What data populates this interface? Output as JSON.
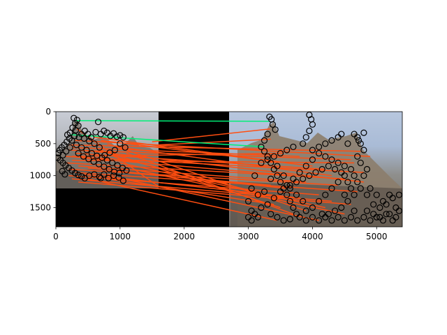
{
  "chart_data": {
    "type": "image",
    "title": "",
    "xlabel": "",
    "ylabel": "",
    "xlim": [
      0,
      5400
    ],
    "ylim": [
      1800,
      0
    ],
    "xticks": [
      0,
      1000,
      2000,
      3000,
      4000,
      5000
    ],
    "yticks": [
      0,
      500,
      1000,
      1500
    ],
    "xtick_labels": [
      "0",
      "1000",
      "2000",
      "3000",
      "4000",
      "5000"
    ],
    "ytick_labels": [
      "0",
      "500",
      "1000",
      "1500"
    ],
    "images": [
      {
        "name": "left-photo",
        "x": [
          0,
          1600
        ],
        "y": [
          0,
          1200
        ]
      },
      {
        "name": "right-photo",
        "x": [
          2700,
          5400
        ],
        "y": [
          0,
          1800
        ]
      }
    ],
    "colors": {
      "inlier": "#00ee77",
      "outlier": "#ff4e11",
      "keypoint": "#000000",
      "padding": "#000000"
    },
    "inlier_matches": [
      {
        "x1": 280,
        "y1": 140,
        "x2": 3330,
        "y2": 150
      },
      {
        "x1": 230,
        "y1": 360,
        "x2": 3250,
        "y2": 550
      }
    ],
    "outlier_matches": [
      {
        "x1": 330,
        "y1": 270,
        "x2": 1600,
        "y2": 1170
      },
      {
        "x1": 1500,
        "y1": 470,
        "x2": 3340,
        "y2": 270
      },
      {
        "x1": 1600,
        "y1": 520,
        "x2": 3350,
        "y2": 430
      },
      {
        "x1": 200,
        "y1": 520,
        "x2": 4750,
        "y2": 620
      },
      {
        "x1": 250,
        "y1": 560,
        "x2": 3800,
        "y2": 700
      },
      {
        "x1": 200,
        "y1": 600,
        "x2": 4600,
        "y2": 750
      },
      {
        "x1": 300,
        "y1": 650,
        "x2": 4200,
        "y2": 900
      },
      {
        "x1": 150,
        "y1": 700,
        "x2": 4800,
        "y2": 950
      },
      {
        "x1": 250,
        "y1": 760,
        "x2": 4650,
        "y2": 800
      },
      {
        "x1": 400,
        "y1": 720,
        "x2": 3700,
        "y2": 1000
      },
      {
        "x1": 150,
        "y1": 800,
        "x2": 4500,
        "y2": 1050
      },
      {
        "x1": 350,
        "y1": 850,
        "x2": 3900,
        "y2": 1100
      },
      {
        "x1": 200,
        "y1": 900,
        "x2": 4400,
        "y2": 1150
      },
      {
        "x1": 500,
        "y1": 880,
        "x2": 3600,
        "y2": 1200
      },
      {
        "x1": 300,
        "y1": 950,
        "x2": 4700,
        "y2": 1250
      },
      {
        "x1": 200,
        "y1": 1000,
        "x2": 4100,
        "y2": 1300
      },
      {
        "x1": 450,
        "y1": 980,
        "x2": 3800,
        "y2": 1350
      },
      {
        "x1": 250,
        "y1": 1050,
        "x2": 4300,
        "y2": 1400
      },
      {
        "x1": 600,
        "y1": 1020,
        "x2": 3400,
        "y2": 1450
      },
      {
        "x1": 350,
        "y1": 1100,
        "x2": 4600,
        "y2": 1450
      },
      {
        "x1": 700,
        "y1": 600,
        "x2": 3500,
        "y2": 1500
      },
      {
        "x1": 800,
        "y1": 500,
        "x2": 3900,
        "y2": 1550
      },
      {
        "x1": 900,
        "y1": 700,
        "x2": 3300,
        "y2": 1300
      },
      {
        "x1": 1000,
        "y1": 800,
        "x2": 4200,
        "y2": 1500
      },
      {
        "x1": 600,
        "y1": 400,
        "x2": 3600,
        "y2": 800
      },
      {
        "x1": 700,
        "y1": 450,
        "x2": 4000,
        "y2": 850
      },
      {
        "x1": 1100,
        "y1": 650,
        "x2": 3700,
        "y2": 1600
      },
      {
        "x1": 1200,
        "y1": 900,
        "x2": 4500,
        "y2": 1600
      },
      {
        "x1": 500,
        "y1": 1050,
        "x2": 3450,
        "y2": 1700
      },
      {
        "x1": 800,
        "y1": 1000,
        "x2": 4100,
        "y2": 1700
      },
      {
        "x1": 300,
        "y1": 450,
        "x2": 4900,
        "y2": 700
      },
      {
        "x1": 400,
        "y1": 600,
        "x2": 4800,
        "y2": 1100
      },
      {
        "x1": 250,
        "y1": 700,
        "x2": 3550,
        "y2": 650
      },
      {
        "x1": 950,
        "y1": 550,
        "x2": 4300,
        "y2": 1000
      },
      {
        "x1": 1050,
        "y1": 950,
        "x2": 3350,
        "y2": 1150
      }
    ],
    "keypoints_left": [
      [
        280,
        100
      ],
      [
        330,
        130
      ],
      [
        300,
        180
      ],
      [
        350,
        220
      ],
      [
        260,
        250
      ],
      [
        310,
        290
      ],
      [
        220,
        330
      ],
      [
        180,
        360
      ],
      [
        400,
        350
      ],
      [
        450,
        300
      ],
      [
        500,
        350
      ],
      [
        550,
        400
      ],
      [
        620,
        320
      ],
      [
        700,
        350
      ],
      [
        750,
        300
      ],
      [
        800,
        330
      ],
      [
        850,
        380
      ],
      [
        900,
        340
      ],
      [
        950,
        390
      ],
      [
        1000,
        370
      ],
      [
        1050,
        400
      ],
      [
        660,
        160
      ],
      [
        210,
        420
      ],
      [
        170,
        470
      ],
      [
        130,
        520
      ],
      [
        90,
        560
      ],
      [
        60,
        600
      ],
      [
        40,
        650
      ],
      [
        30,
        720
      ],
      [
        70,
        760
      ],
      [
        110,
        800
      ],
      [
        150,
        840
      ],
      [
        200,
        880
      ],
      [
        250,
        920
      ],
      [
        300,
        960
      ],
      [
        350,
        990
      ],
      [
        400,
        1010
      ],
      [
        450,
        1040
      ],
      [
        520,
        1000
      ],
      [
        600,
        980
      ],
      [
        680,
        1020
      ],
      [
        750,
        980
      ],
      [
        820,
        1040
      ],
      [
        900,
        1000
      ],
      [
        980,
        1030
      ],
      [
        1050,
        1080
      ],
      [
        700,
        1040
      ],
      [
        100,
        930
      ],
      [
        140,
        980
      ],
      [
        250,
        450
      ],
      [
        320,
        520
      ],
      [
        400,
        560
      ],
      [
        480,
        600
      ],
      [
        560,
        650
      ],
      [
        640,
        690
      ],
      [
        720,
        720
      ],
      [
        800,
        760
      ],
      [
        880,
        800
      ],
      [
        960,
        840
      ],
      [
        1040,
        880
      ],
      [
        1100,
        920
      ],
      [
        1000,
        500
      ],
      [
        1080,
        560
      ],
      [
        920,
        600
      ],
      [
        840,
        640
      ],
      [
        760,
        680
      ],
      [
        680,
        560
      ],
      [
        600,
        500
      ],
      [
        520,
        460
      ],
      [
        440,
        420
      ],
      [
        360,
        400
      ],
      [
        290,
        380
      ],
      [
        220,
        560
      ],
      [
        160,
        620
      ],
      [
        110,
        680
      ],
      [
        350,
        650
      ],
      [
        430,
        700
      ],
      [
        510,
        740
      ],
      [
        590,
        780
      ],
      [
        670,
        820
      ],
      [
        750,
        860
      ],
      [
        830,
        900
      ],
      [
        910,
        940
      ],
      [
        990,
        960
      ]
    ],
    "keypoints_right": [
      [
        3330,
        80
      ],
      [
        3360,
        120
      ],
      [
        3380,
        200
      ],
      [
        3420,
        280
      ],
      [
        3300,
        350
      ],
      [
        3250,
        450
      ],
      [
        3200,
        550
      ],
      [
        3250,
        620
      ],
      [
        3300,
        700
      ],
      [
        3350,
        800
      ],
      [
        3400,
        900
      ],
      [
        3450,
        1000
      ],
      [
        3500,
        1100
      ],
      [
        3550,
        1200
      ],
      [
        3600,
        1300
      ],
      [
        3650,
        1400
      ],
      [
        3700,
        1500
      ],
      [
        3750,
        1600
      ],
      [
        3800,
        1650
      ],
      [
        3900,
        1700
      ],
      [
        4000,
        1650
      ],
      [
        4100,
        1700
      ],
      [
        4200,
        1650
      ],
      [
        4300,
        1700
      ],
      [
        4400,
        1650
      ],
      [
        4500,
        1700
      ],
      [
        4600,
        1650
      ],
      [
        4700,
        1700
      ],
      [
        4800,
        1650
      ],
      [
        4900,
        1700
      ],
      [
        5000,
        1650
      ],
      [
        5100,
        1700
      ],
      [
        5200,
        1600
      ],
      [
        5300,
        1500
      ],
      [
        5350,
        1300
      ],
      [
        5250,
        1350
      ],
      [
        5150,
        1450
      ],
      [
        5050,
        1500
      ],
      [
        4950,
        1450
      ],
      [
        4850,
        1300
      ],
      [
        4750,
        1200
      ],
      [
        4700,
        1100
      ],
      [
        4800,
        1000
      ],
      [
        4850,
        900
      ],
      [
        4750,
        800
      ],
      [
        4700,
        700
      ],
      [
        4800,
        600
      ],
      [
        4750,
        500
      ],
      [
        4700,
        400
      ],
      [
        4650,
        350
      ],
      [
        4800,
        330
      ],
      [
        4720,
        450
      ],
      [
        4550,
        500
      ],
      [
        4450,
        350
      ],
      [
        4400,
        400
      ],
      [
        4300,
        450
      ],
      [
        4200,
        500
      ],
      [
        4100,
        550
      ],
      [
        4000,
        600
      ],
      [
        3950,
        50
      ],
      [
        3980,
        120
      ],
      [
        4000,
        200
      ],
      [
        3950,
        300
      ],
      [
        3900,
        400
      ],
      [
        3850,
        500
      ],
      [
        3700,
        550
      ],
      [
        3600,
        600
      ],
      [
        3500,
        650
      ],
      [
        3400,
        700
      ],
      [
        3300,
        750
      ],
      [
        3200,
        800
      ],
      [
        3100,
        1000
      ],
      [
        3050,
        1200
      ],
      [
        3000,
        1400
      ],
      [
        3050,
        1550
      ],
      [
        3100,
        1600
      ],
      [
        3150,
        1650
      ],
      [
        3000,
        1650
      ],
      [
        3050,
        1700
      ],
      [
        3200,
        1500
      ],
      [
        3300,
        1450
      ],
      [
        3400,
        1350
      ],
      [
        3500,
        1250
      ],
      [
        3600,
        1150
      ],
      [
        3700,
        1050
      ],
      [
        3800,
        950
      ],
      [
        3900,
        850
      ],
      [
        4000,
        750
      ],
      [
        4100,
        650
      ],
      [
        4200,
        700
      ],
      [
        4300,
        750
      ],
      [
        4400,
        800
      ],
      [
        4500,
        850
      ],
      [
        4600,
        900
      ],
      [
        4500,
        1000
      ],
      [
        4400,
        1100
      ],
      [
        4300,
        1200
      ],
      [
        4200,
        1300
      ],
      [
        4100,
        1400
      ],
      [
        4000,
        1500
      ],
      [
        3900,
        1550
      ],
      [
        4450,
        1500
      ],
      [
        4550,
        1400
      ],
      [
        4650,
        1300
      ],
      [
        4600,
        1200
      ],
      [
        4500,
        1300
      ],
      [
        4900,
        1200
      ],
      [
        5000,
        1300
      ],
      [
        5100,
        1400
      ],
      [
        5200,
        1300
      ],
      [
        5350,
        1550
      ],
      [
        5300,
        1650
      ],
      [
        5150,
        1600
      ],
      [
        4850,
        1550
      ],
      [
        4650,
        1550
      ],
      [
        4350,
        1550
      ],
      [
        4250,
        1600
      ],
      [
        4150,
        1600
      ],
      [
        3850,
        1400
      ],
      [
        3750,
        1300
      ],
      [
        3650,
        1200
      ],
      [
        3550,
        1000
      ],
      [
        3450,
        850
      ],
      [
        3350,
        1050
      ],
      [
        3250,
        1250
      ],
      [
        3150,
        1300
      ],
      [
        3350,
        1600
      ],
      [
        3450,
        1650
      ],
      [
        3550,
        1700
      ],
      [
        3650,
        1680
      ],
      [
        4950,
        1600
      ],
      [
        5050,
        1650
      ],
      [
        5250,
        1700
      ],
      [
        4650,
        1000
      ],
      [
        4550,
        1100
      ],
      [
        4450,
        950
      ],
      [
        4350,
        900
      ],
      [
        4250,
        850
      ],
      [
        4150,
        900
      ],
      [
        4050,
        950
      ],
      [
        3950,
        1000
      ],
      [
        3850,
        1050
      ],
      [
        3750,
        1100
      ],
      [
        3650,
        1150
      ]
    ]
  }
}
